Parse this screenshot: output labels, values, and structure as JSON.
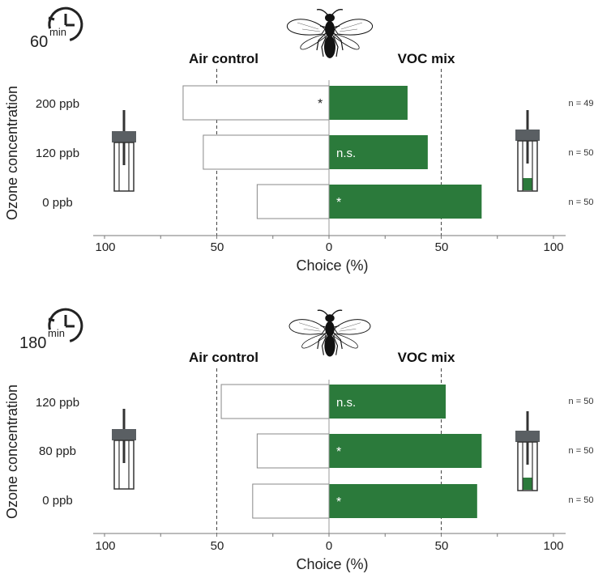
{
  "colors": {
    "voc": "#2b7a3b",
    "air": "#ffffff",
    "outline": "#888888",
    "dashed": "#444444",
    "vial_cap": "#5a5f63"
  },
  "chart_data": [
    {
      "type": "bar",
      "orientation": "horizontal-diverging",
      "duration_value": "60",
      "duration_unit": "min",
      "icon": "clock-icon",
      "left_label": "Air control",
      "right_label": "VOC mix",
      "ylabel": "Ozone concentration",
      "xlabel": "Choice (%)",
      "xlim": [
        -100,
        100
      ],
      "xticks": [
        -100,
        -50,
        0,
        50,
        100
      ],
      "xtick_labels": [
        "100",
        "50",
        "0",
        "50",
        "100"
      ],
      "dashed_at": [
        -50,
        50
      ],
      "categories": [
        "200 ppb",
        "120 ppb",
        "0 ppb"
      ],
      "series": [
        {
          "name": "Air control",
          "values": [
            65,
            56,
            32
          ]
        },
        {
          "name": "VOC mix",
          "values": [
            35,
            44,
            68
          ]
        }
      ],
      "significance": [
        "*",
        "n.s.",
        "*"
      ],
      "significance_side": [
        "left",
        "right",
        "right"
      ],
      "n": [
        "n = 49",
        "n = 50",
        "n = 50"
      ]
    },
    {
      "type": "bar",
      "orientation": "horizontal-diverging",
      "duration_value": "180",
      "duration_unit": "min",
      "icon": "clock-icon",
      "left_label": "Air control",
      "right_label": "VOC mix",
      "ylabel": "Ozone concentration",
      "xlabel": "Choice (%)",
      "xlim": [
        -100,
        100
      ],
      "xticks": [
        -100,
        -50,
        0,
        50,
        100
      ],
      "xtick_labels": [
        "100",
        "50",
        "0",
        "50",
        "100"
      ],
      "dashed_at": [
        -50,
        50
      ],
      "categories": [
        "120 ppb",
        "80 ppb",
        "0 ppb"
      ],
      "series": [
        {
          "name": "Air control",
          "values": [
            48,
            32,
            34
          ]
        },
        {
          "name": "VOC mix",
          "values": [
            52,
            68,
            66
          ]
        }
      ],
      "significance": [
        "n.s.",
        "*",
        "*"
      ],
      "significance_side": [
        "right",
        "right",
        "right"
      ],
      "n": [
        "n = 50",
        "n = 50",
        "n = 50"
      ]
    }
  ]
}
